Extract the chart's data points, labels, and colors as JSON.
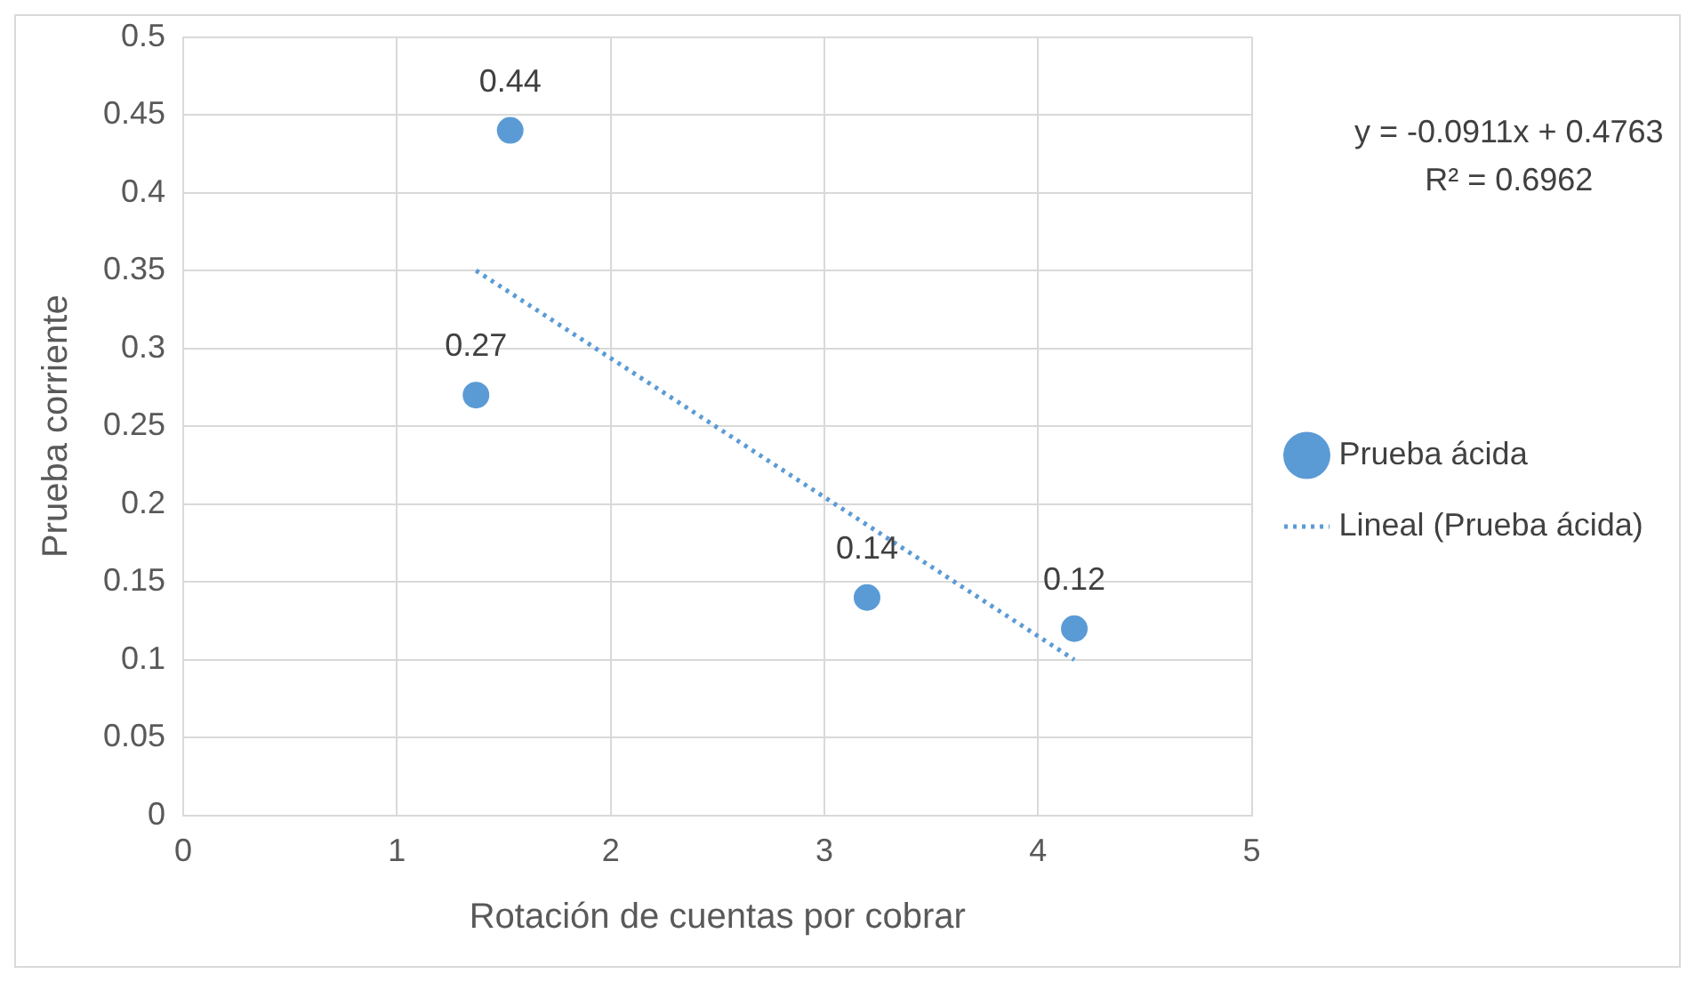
{
  "chart_data": {
    "type": "scatter",
    "xlabel": "Rotación de cuentas por cobrar",
    "ylabel": "Prueba corriente",
    "xlim": [
      0,
      5
    ],
    "xticks": [
      0,
      1,
      2,
      3,
      4,
      5
    ],
    "ylim": [
      0,
      0.5
    ],
    "yticks": [
      0,
      0.05,
      0.1,
      0.15,
      0.2,
      0.25,
      0.3,
      0.35,
      0.4,
      0.45,
      0.5
    ],
    "grid": true,
    "legend": "right",
    "series": [
      {
        "name": "Prueba ácida",
        "color": "#5b9bd5",
        "marker": "circle",
        "x": [
          1.37,
          1.53,
          3.2,
          4.17
        ],
        "values": [
          0.27,
          0.44,
          0.14,
          0.12
        ],
        "value_labels": [
          "0.27",
          "0.44",
          "0.14",
          "0.12"
        ]
      },
      {
        "name": "Lineal (Prueba ácida)",
        "type": "line",
        "color": "#5b9bd5",
        "marker": "none",
        "line_style": "dotted",
        "x": [
          1.37,
          4.17
        ],
        "values": [
          0.35,
          0.1
        ]
      }
    ],
    "annotations": [
      "y = -0.0911x + 0.4763",
      "R² = 0.6962"
    ]
  }
}
